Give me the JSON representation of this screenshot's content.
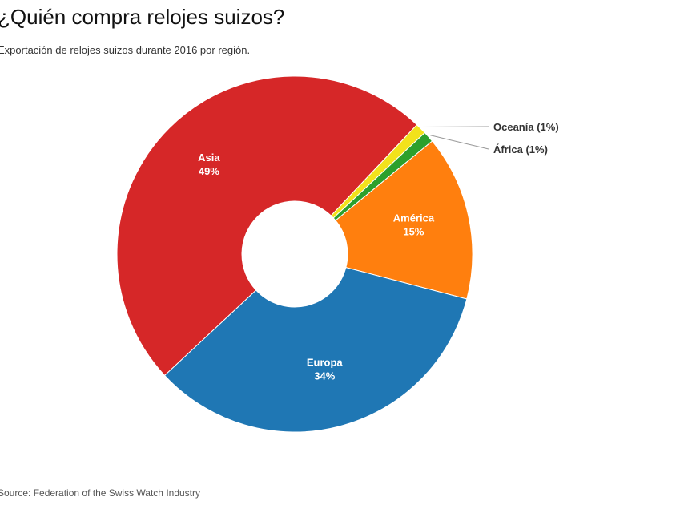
{
  "chart_data": {
    "type": "pie",
    "donut": true,
    "title": "¿Quién compra relojes suizos?",
    "subtitle": "Exportación de relojes suizos durante 2016 por región.",
    "source": "Source: Federation of the Swiss Watch Industry",
    "slices": [
      {
        "label": "Asia",
        "value": 49,
        "value_label": "49%",
        "color": "#d62728",
        "label_style": "inside"
      },
      {
        "label": "Oceanía",
        "value": 1,
        "value_label": "Oceanía (1%)",
        "color": "#f2e21b",
        "label_style": "callout"
      },
      {
        "label": "África",
        "value": 1,
        "value_label": "África (1%)",
        "color": "#2ca02c",
        "label_style": "callout"
      },
      {
        "label": "América",
        "value": 15,
        "value_label": "15%",
        "color": "#ff7f0e",
        "label_style": "inside"
      },
      {
        "label": "Europa",
        "value": 34,
        "value_label": "34%",
        "color": "#1f77b4",
        "label_style": "inside"
      }
    ],
    "legend": "none"
  }
}
